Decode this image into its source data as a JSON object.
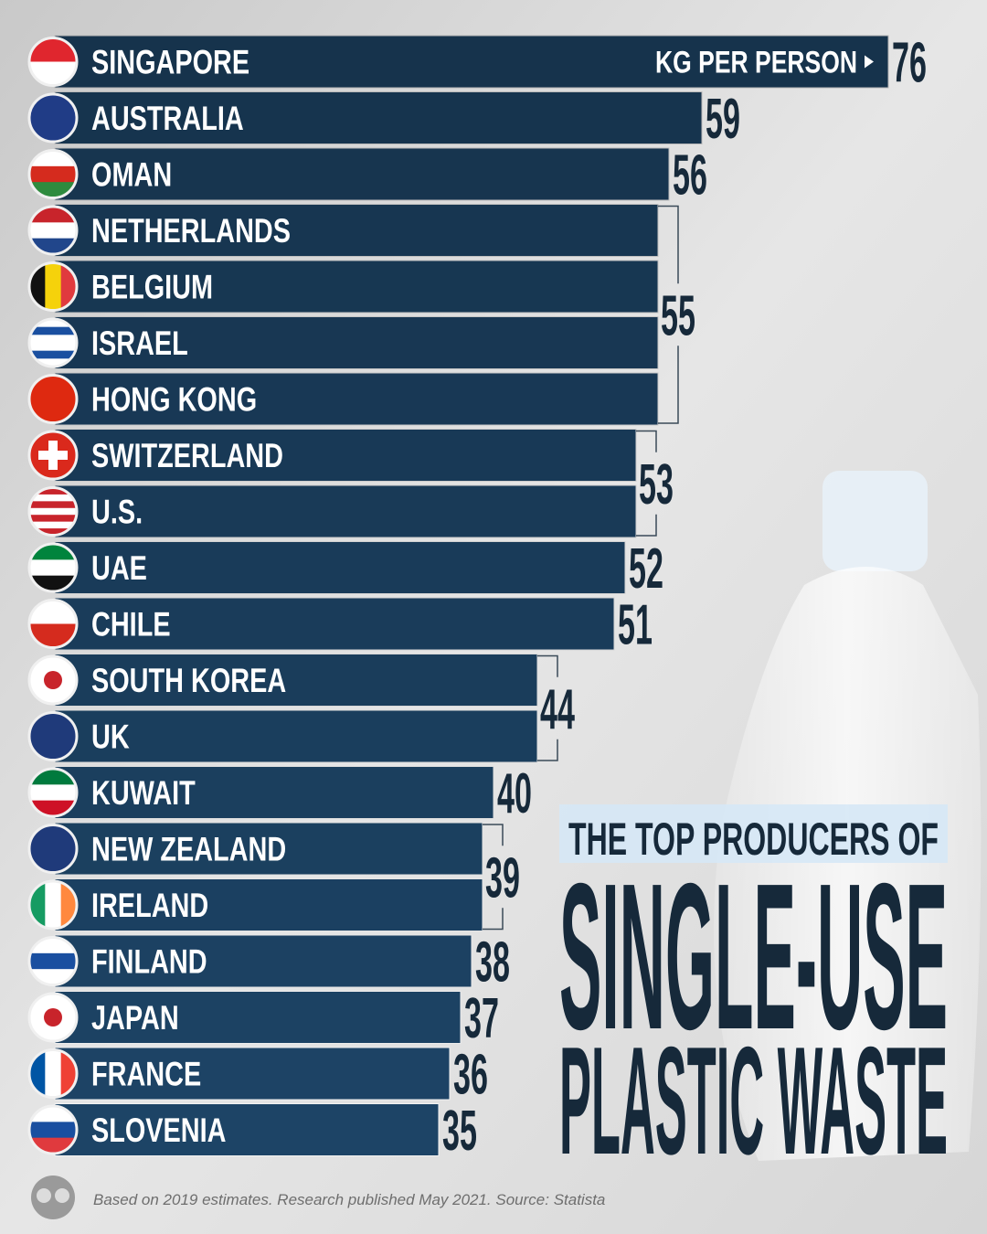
{
  "chart_data": {
    "type": "bar",
    "title_lines": [
      "THE TOP PRODUCERS OF",
      "SINGLE-USE",
      "PLASTIC WASTE"
    ],
    "unit_label": "KG PER PERSON",
    "categories": [
      "SINGAPORE",
      "AUSTRALIA",
      "OMAN",
      "NETHERLANDS",
      "BELGIUM",
      "ISRAEL",
      "HONG KONG",
      "SWITZERLAND",
      "U.S.",
      "UAE",
      "CHILE",
      "SOUTH KOREA",
      "UK",
      "KUWAIT",
      "NEW ZEALAND",
      "IRELAND",
      "FINLAND",
      "JAPAN",
      "FRANCE",
      "SLOVENIA"
    ],
    "values": [
      76,
      59,
      56,
      55,
      55,
      55,
      55,
      53,
      53,
      52,
      51,
      44,
      44,
      40,
      39,
      39,
      38,
      37,
      36,
      35
    ],
    "color": "#1d4466",
    "xlim": [
      0,
      85
    ],
    "source": "Based on 2019 estimates. Research published May 2021. Source: Statista"
  }
}
